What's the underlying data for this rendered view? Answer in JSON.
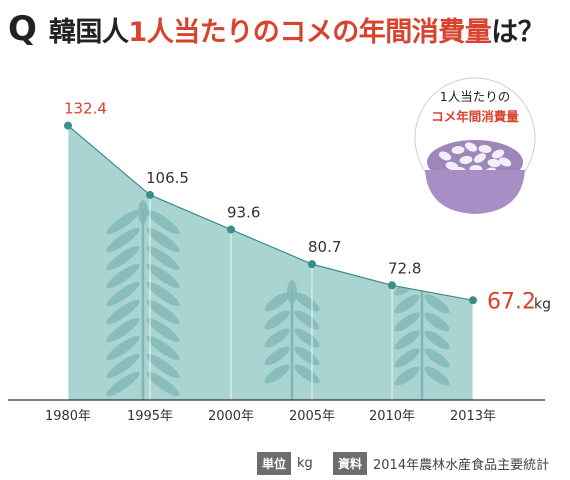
{
  "title": {
    "prefix": "Q",
    "part1": "韓国人",
    "part2": "1人当たりのコメの年間消費量",
    "part3": "は？"
  },
  "badge": {
    "line1": "1人当たりの",
    "line2": "コメ年間消費量"
  },
  "footer": {
    "unit_tag": "単位",
    "unit_value": "kg",
    "source_tag": "資料",
    "source_value": "2014年農林水産食品主要統計"
  },
  "colors": {
    "area": "#a9d4d2",
    "line": "#3c8c8c",
    "highlight": "#d9432e",
    "wheat": "#7fb5b3",
    "bowl": "#a88ec4",
    "grain": "#f3eef8"
  },
  "chart_data": {
    "type": "area",
    "categories": [
      "1980年",
      "1995年",
      "2000年",
      "2005年",
      "2010年",
      "2013年"
    ],
    "values": [
      132.4,
      106.5,
      93.6,
      80.7,
      72.8,
      67.2
    ],
    "value_labels": [
      "132.4",
      "106.5",
      "93.6",
      "80.7",
      "72.8",
      "67.2"
    ],
    "unit": "kg",
    "highlight_indices": [
      0,
      5
    ],
    "ylim": [
      0,
      140
    ],
    "grid": false
  }
}
